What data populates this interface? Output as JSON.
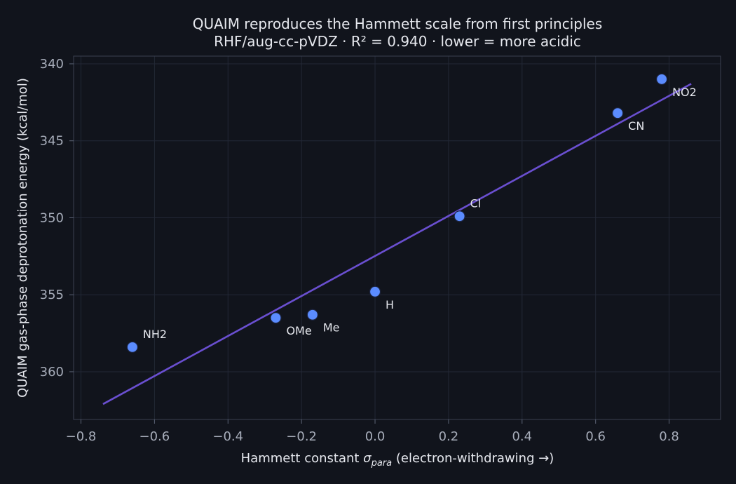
{
  "chart_data": {
    "type": "scatter",
    "title": "QUAIM reproduces the Hammett scale from first principles",
    "subtitle": "RHF/aug-cc-pVDZ  ·  R² = 0.940  ·  lower = more acidic",
    "xlabel_prefix": "Hammett constant  ",
    "xlabel_symbol": "σ",
    "xlabel_subscript": "para",
    "xlabel_suffix": "  (electron-withdrawing →)",
    "ylabel": "QUAIM gas-phase deprotonation energy (kcal/mol)",
    "xlim": [
      -0.82,
      0.94
    ],
    "ylim": [
      363.1,
      339.5
    ],
    "y_inverted": true,
    "xticks": [
      -0.8,
      -0.6,
      -0.4,
      -0.2,
      0.0,
      0.2,
      0.4,
      0.6,
      0.8
    ],
    "xtick_labels": [
      "−0.8",
      "−0.6",
      "−0.4",
      "−0.2",
      "0.0",
      "0.2",
      "0.4",
      "0.6",
      "0.8"
    ],
    "yticks": [
      340,
      345,
      350,
      355,
      360
    ],
    "ytick_labels": [
      "340",
      "345",
      "350",
      "355",
      "360"
    ],
    "grid": true,
    "points": [
      {
        "label": "NH2",
        "x": -0.66,
        "y": 358.4
      },
      {
        "label": "OMe",
        "x": -0.27,
        "y": 356.5
      },
      {
        "label": "Me",
        "x": -0.17,
        "y": 356.3
      },
      {
        "label": "H",
        "x": 0.0,
        "y": 354.8
      },
      {
        "label": "Cl",
        "x": 0.23,
        "y": 349.9
      },
      {
        "label": "CN",
        "x": 0.66,
        "y": 343.2
      },
      {
        "label": "NO2",
        "x": 0.78,
        "y": 341.0
      }
    ],
    "fit_line": {
      "x": [
        -0.74,
        0.86
      ],
      "y": [
        362.1,
        341.3
      ]
    },
    "colors": {
      "background": "#11141c",
      "point_fill": "#5b8cff",
      "point_edge": "#1c2440",
      "fit_line": "#6a4fd0"
    }
  }
}
